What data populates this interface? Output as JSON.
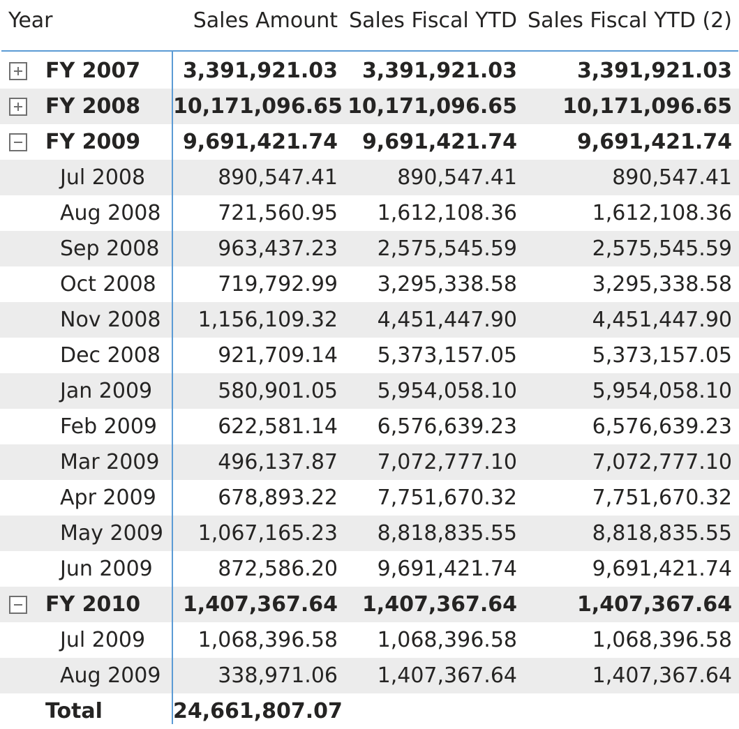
{
  "columns": [
    "Year",
    "Sales Amount",
    "Sales Fiscal YTD",
    "Sales Fiscal YTD (2)"
  ],
  "rows": [
    {
      "label": "FY 2007",
      "level": 0,
      "toggle": "expand",
      "values": [
        "3,391,921.03",
        "3,391,921.03",
        "3,391,921.03"
      ]
    },
    {
      "label": "FY 2008",
      "level": 0,
      "toggle": "expand",
      "values": [
        "10,171,096.65",
        "10,171,096.65",
        "10,171,096.65"
      ]
    },
    {
      "label": "FY 2009",
      "level": 0,
      "toggle": "collapse",
      "values": [
        "9,691,421.74",
        "9,691,421.74",
        "9,691,421.74"
      ]
    },
    {
      "label": "Jul 2008",
      "level": 1,
      "values": [
        "890,547.41",
        "890,547.41",
        "890,547.41"
      ]
    },
    {
      "label": "Aug 2008",
      "level": 1,
      "values": [
        "721,560.95",
        "1,612,108.36",
        "1,612,108.36"
      ]
    },
    {
      "label": "Sep 2008",
      "level": 1,
      "values": [
        "963,437.23",
        "2,575,545.59",
        "2,575,545.59"
      ]
    },
    {
      "label": "Oct 2008",
      "level": 1,
      "values": [
        "719,792.99",
        "3,295,338.58",
        "3,295,338.58"
      ]
    },
    {
      "label": "Nov 2008",
      "level": 1,
      "values": [
        "1,156,109.32",
        "4,451,447.90",
        "4,451,447.90"
      ]
    },
    {
      "label": "Dec 2008",
      "level": 1,
      "values": [
        "921,709.14",
        "5,373,157.05",
        "5,373,157.05"
      ]
    },
    {
      "label": "Jan 2009",
      "level": 1,
      "values": [
        "580,901.05",
        "5,954,058.10",
        "5,954,058.10"
      ]
    },
    {
      "label": "Feb 2009",
      "level": 1,
      "values": [
        "622,581.14",
        "6,576,639.23",
        "6,576,639.23"
      ]
    },
    {
      "label": "Mar 2009",
      "level": 1,
      "values": [
        "496,137.87",
        "7,072,777.10",
        "7,072,777.10"
      ]
    },
    {
      "label": "Apr 2009",
      "level": 1,
      "values": [
        "678,893.22",
        "7,751,670.32",
        "7,751,670.32"
      ]
    },
    {
      "label": "May 2009",
      "level": 1,
      "values": [
        "1,067,165.23",
        "8,818,835.55",
        "8,818,835.55"
      ]
    },
    {
      "label": "Jun 2009",
      "level": 1,
      "values": [
        "872,586.20",
        "9,691,421.74",
        "9,691,421.74"
      ]
    },
    {
      "label": "FY 2010",
      "level": 0,
      "toggle": "collapse",
      "values": [
        "1,407,367.64",
        "1,407,367.64",
        "1,407,367.64"
      ]
    },
    {
      "label": "Jul 2009",
      "level": 1,
      "values": [
        "1,068,396.58",
        "1,068,396.58",
        "1,068,396.58"
      ]
    },
    {
      "label": "Aug 2009",
      "level": 1,
      "values": [
        "338,971.06",
        "1,407,367.64",
        "1,407,367.64"
      ]
    }
  ],
  "total": {
    "label": "Total",
    "values": [
      "24,661,807.07",
      "",
      ""
    ]
  },
  "colors": {
    "accent_line": "#5b9bd5",
    "row_shade": "#ececec",
    "text": "#252423"
  }
}
